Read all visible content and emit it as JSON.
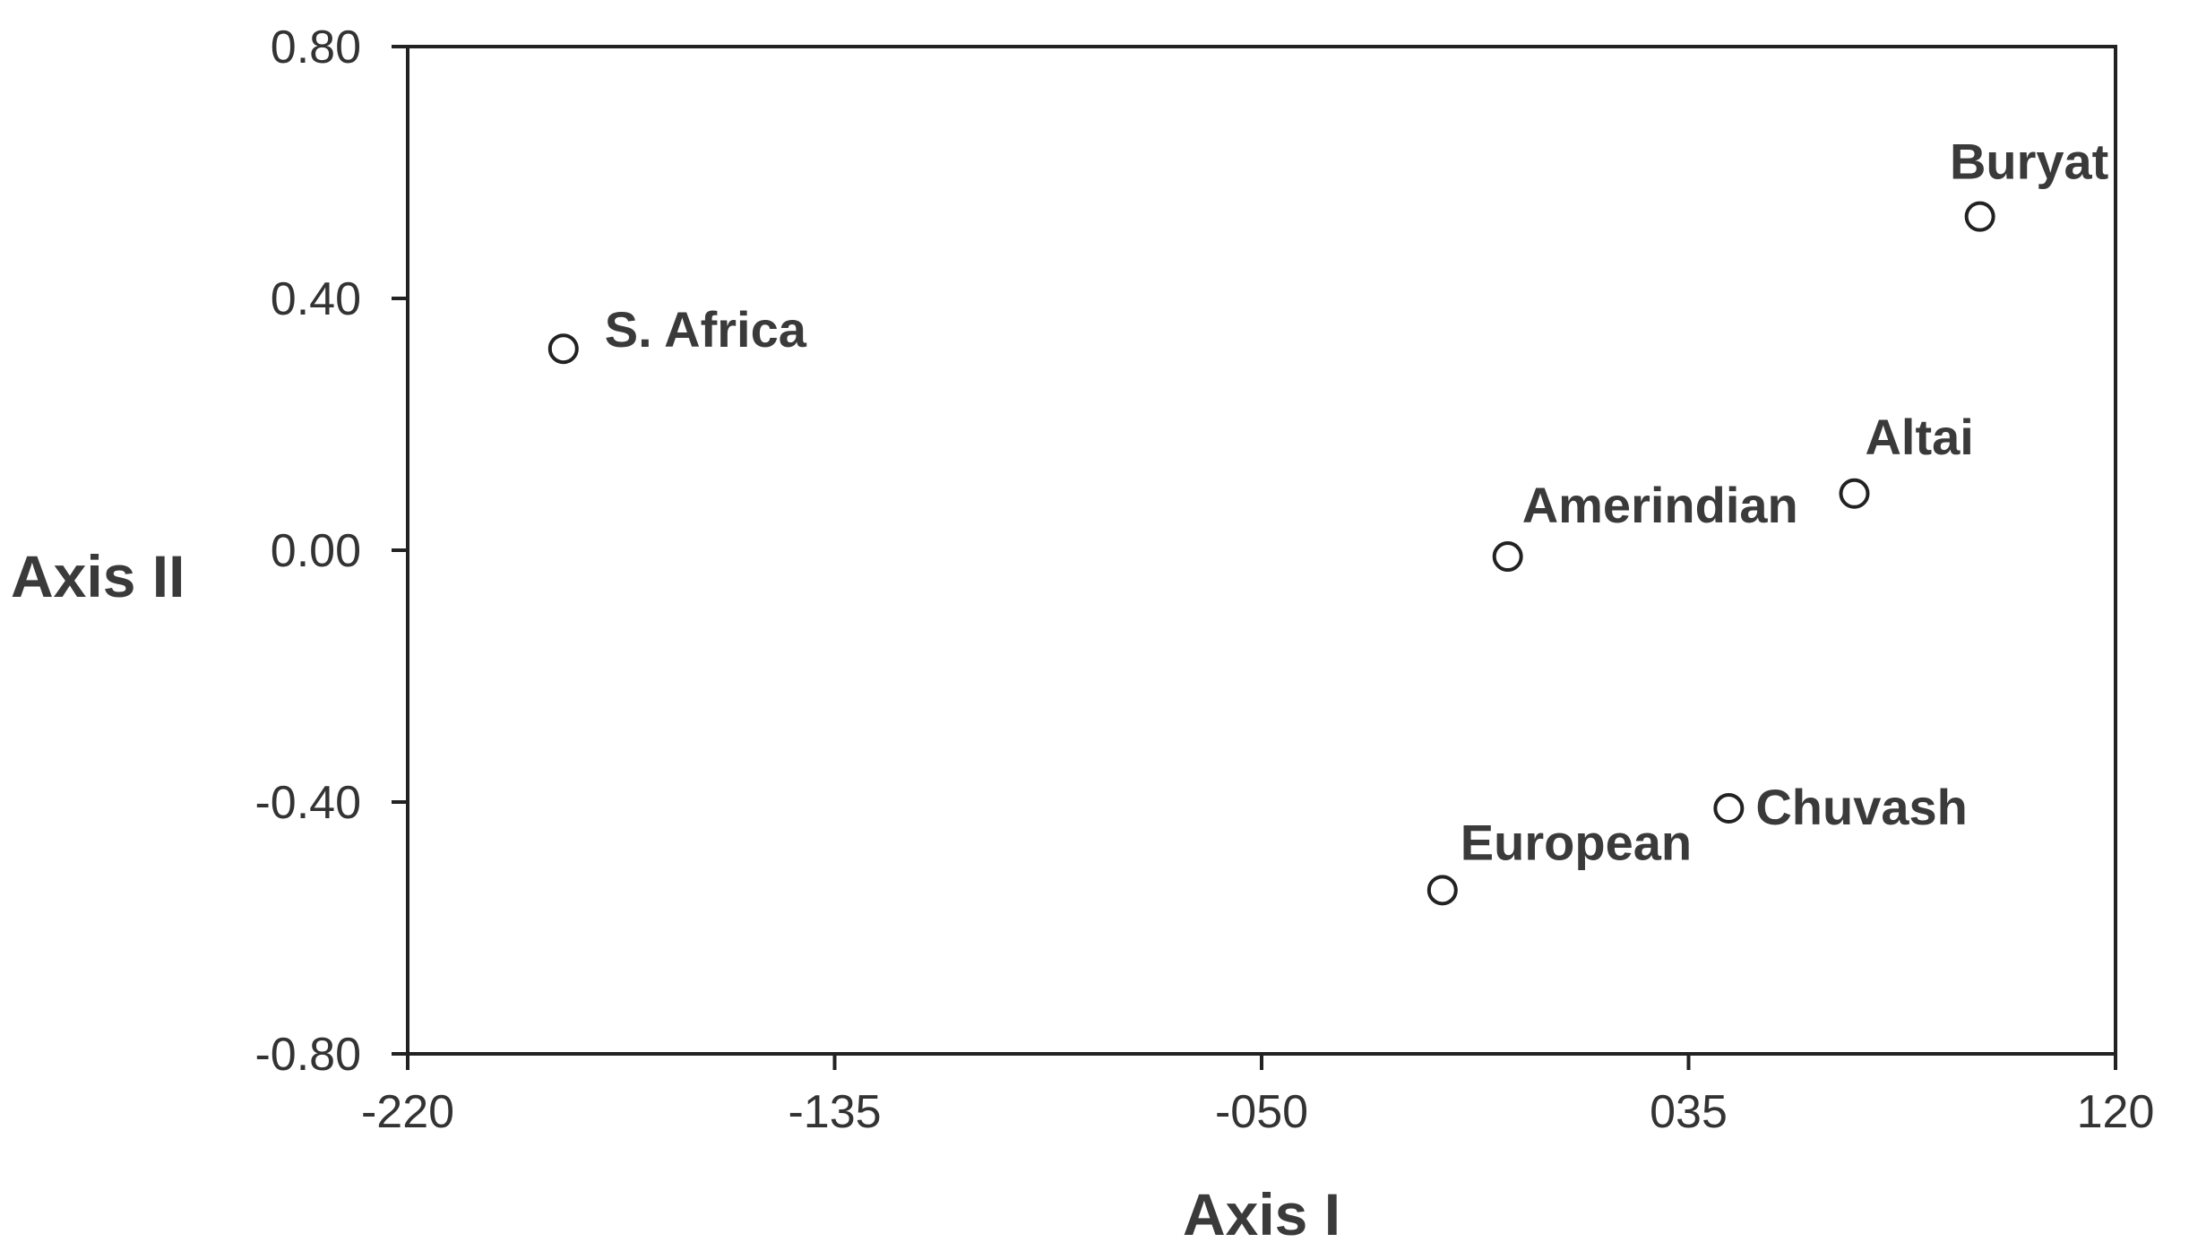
{
  "chart_data": {
    "type": "scatter",
    "xlabel": "Axis I",
    "ylabel": "Axis II",
    "xlim": [
      -220,
      120
    ],
    "ylim": [
      -0.8,
      0.8
    ],
    "x_ticks": [
      {
        "value": -220,
        "label": "-220"
      },
      {
        "value": -135,
        "label": "-135"
      },
      {
        "value": -50,
        "label": "-050"
      },
      {
        "value": 35,
        "label": "035"
      },
      {
        "value": 120,
        "label": "120"
      }
    ],
    "y_ticks": [
      {
        "value": 0.8,
        "label": "0.80"
      },
      {
        "value": 0.4,
        "label": "0.40"
      },
      {
        "value": 0.0,
        "label": "0.00"
      },
      {
        "value": -0.4,
        "label": "-0.40"
      },
      {
        "value": -0.8,
        "label": "-0.80"
      }
    ],
    "grid": false,
    "points": [
      {
        "label": "S. Africa",
        "x": -189,
        "y": 0.32
      },
      {
        "label": "Amerindian",
        "x": -1,
        "y": -0.01
      },
      {
        "label": "Altai",
        "x": 68,
        "y": 0.09
      },
      {
        "label": "Buryat",
        "x": 93,
        "y": 0.53
      },
      {
        "label": "Chuvash",
        "x": 43,
        "y": -0.41
      },
      {
        "label": "European",
        "x": -14,
        "y": -0.54
      }
    ]
  }
}
